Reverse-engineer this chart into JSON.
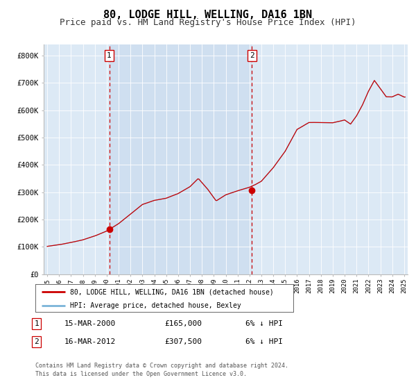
{
  "title": "80, LODGE HILL, WELLING, DA16 1BN",
  "subtitle": "Price paid vs. HM Land Registry's House Price Index (HPI)",
  "title_fontsize": 11,
  "subtitle_fontsize": 9,
  "bg_color": "#ffffff",
  "plot_bg_color": "#dce9f5",
  "grid_color": "#ffffff",
  "hpi_color": "#7ab4d8",
  "price_color": "#cc0000",
  "sale1_date_num": 2000.21,
  "sale1_price": 165000,
  "sale2_date_num": 2012.21,
  "sale2_price": 307500,
  "ylim": [
    0,
    840000
  ],
  "xlim_start": 1994.7,
  "xlim_end": 2025.3,
  "legend_line1": "80, LODGE HILL, WELLING, DA16 1BN (detached house)",
  "legend_line2": "HPI: Average price, detached house, Bexley",
  "table_row1": [
    "1",
    "15-MAR-2000",
    "£165,000",
    "6% ↓ HPI"
  ],
  "table_row2": [
    "2",
    "16-MAR-2012",
    "£307,500",
    "6% ↓ HPI"
  ],
  "footnote": "Contains HM Land Registry data © Crown copyright and database right 2024.\nThis data is licensed under the Open Government Licence v3.0.",
  "ytick_labels": [
    "£0",
    "£100K",
    "£200K",
    "£300K",
    "£400K",
    "£500K",
    "£600K",
    "£700K",
    "£800K"
  ],
  "ytick_values": [
    0,
    100000,
    200000,
    300000,
    400000,
    500000,
    600000,
    700000,
    800000
  ]
}
